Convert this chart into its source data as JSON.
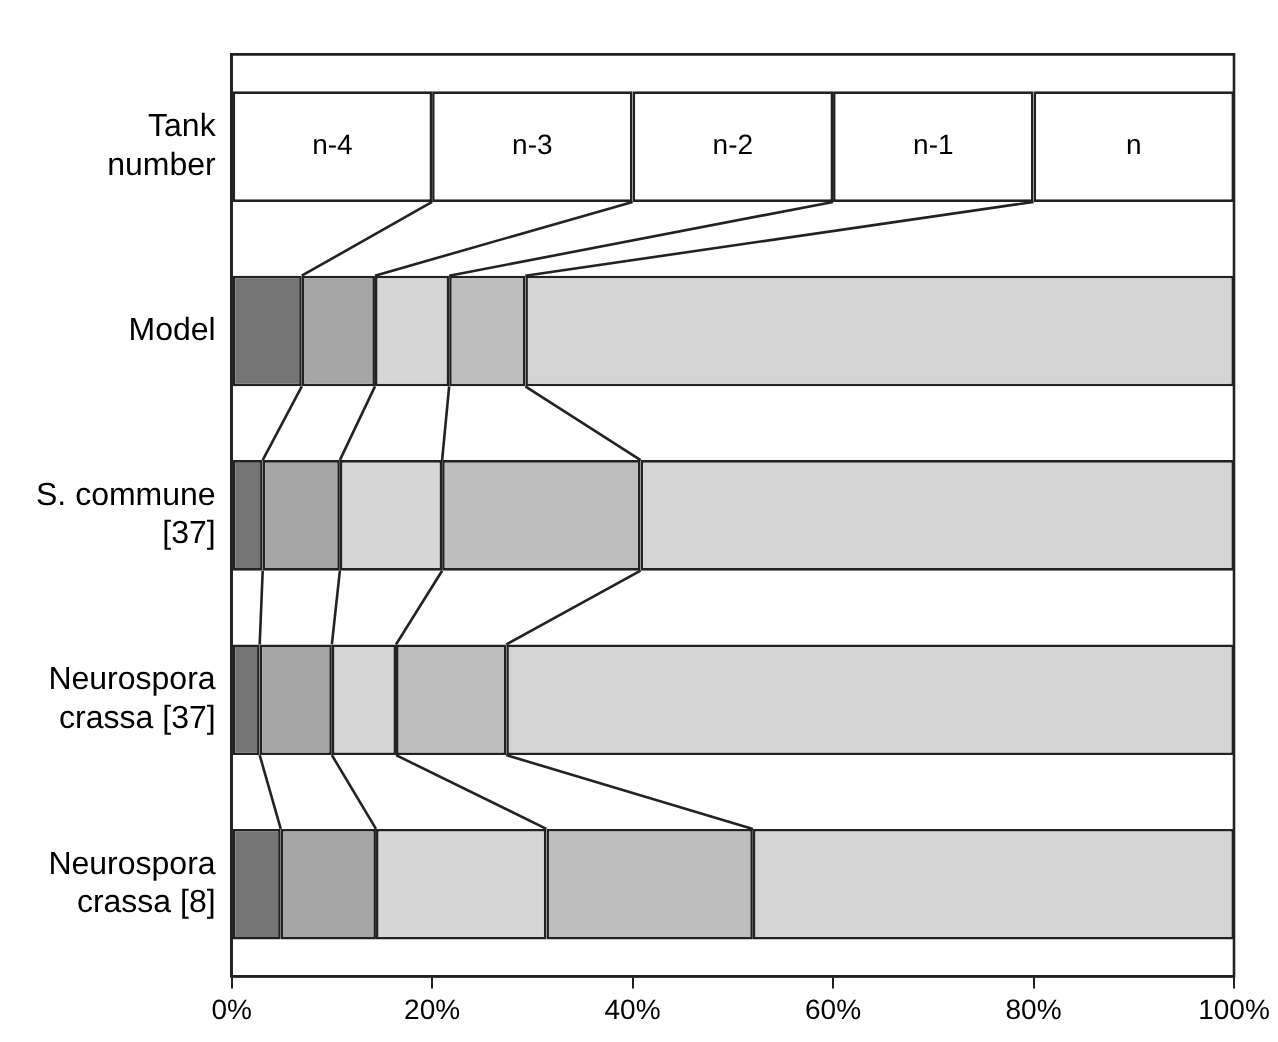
{
  "chart_data": {
    "type": "bar",
    "orientation": "horizontal",
    "stacked": true,
    "categories": [
      "Tank number",
      "Model",
      "S. commune [37]",
      "Neurospora crassa [37]",
      "Neurospora crassa [8]"
    ],
    "series": [
      {
        "colors": [
          "#ffffff",
          "#747474",
          "#747474",
          "#747474",
          "#747474"
        ],
        "values": [
          20,
          7.0,
          3.1,
          2.8,
          4.9
        ],
        "value_labels": [
          "n-4",
          null,
          null,
          null,
          null
        ]
      },
      {
        "colors": [
          "#ffffff",
          "#a6a6a6",
          "#a6a6a6",
          "#a6a6a6",
          "#a6a6a6"
        ],
        "values": [
          20,
          7.3,
          7.7,
          7.2,
          9.5
        ],
        "value_labels": [
          "n-3",
          null,
          null,
          null,
          null
        ]
      },
      {
        "colors": [
          "#ffffff",
          "#d6d6d6",
          "#d6d6d6",
          "#d6d6d6",
          "#d6d6d6"
        ],
        "values": [
          20,
          7.4,
          10.2,
          6.4,
          17.0
        ],
        "value_labels": [
          "n-2",
          null,
          null,
          null,
          null
        ]
      },
      {
        "colors": [
          "#ffffff",
          "#bebebe",
          "#bebebe",
          "#bebebe",
          "#bebebe"
        ],
        "values": [
          20,
          7.6,
          19.8,
          11.0,
          20.6
        ],
        "value_labels": [
          "n-1",
          null,
          null,
          null,
          null
        ]
      },
      {
        "colors": [
          "#ffffff",
          "#d4d4d4",
          "#d4d4d4",
          "#d4d4d4",
          "#d4d4d4"
        ],
        "values": [
          20,
          70.7,
          59.2,
          72.6,
          48.0
        ],
        "value_labels": [
          "n",
          null,
          null,
          null,
          null
        ]
      }
    ],
    "xlim": [
      0,
      100
    ],
    "xticks": [
      {
        "value": 0,
        "label": "0%"
      },
      {
        "value": 20,
        "label": "20%"
      },
      {
        "value": 40,
        "label": "40%"
      },
      {
        "value": 60,
        "label": "60%"
      },
      {
        "value": 80,
        "label": "80%"
      },
      {
        "value": 100,
        "label": "100%"
      }
    ],
    "grid": false,
    "legend": false
  }
}
